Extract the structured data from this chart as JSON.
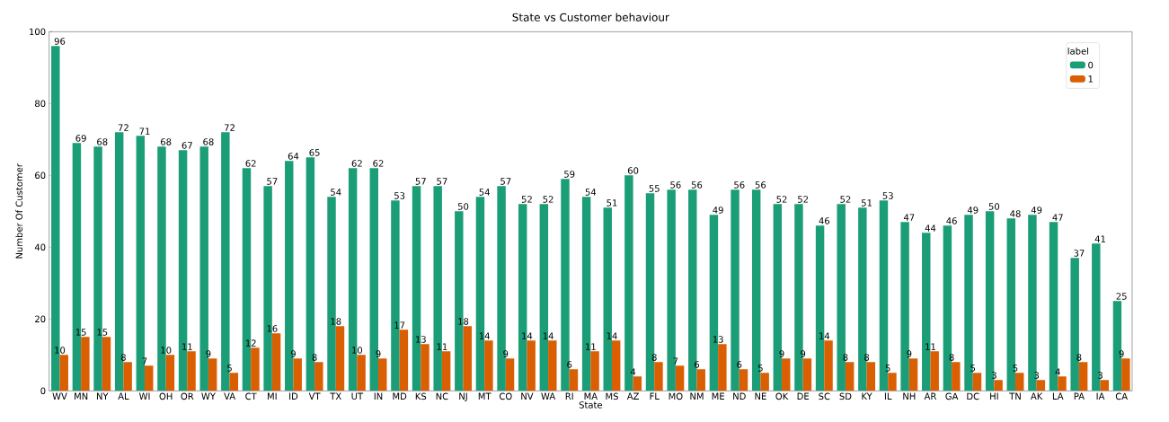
{
  "chart_data": {
    "type": "bar",
    "title": "State vs Customer behaviour",
    "xlabel": "State",
    "ylabel": "Number Of Customer",
    "legend_title": "label",
    "categories": [
      "WV",
      "MN",
      "NY",
      "AL",
      "WI",
      "OH",
      "OR",
      "WY",
      "VA",
      "CT",
      "MI",
      "ID",
      "VT",
      "TX",
      "UT",
      "IN",
      "MD",
      "KS",
      "NC",
      "NJ",
      "MT",
      "CO",
      "NV",
      "WA",
      "RI",
      "MA",
      "MS",
      "AZ",
      "FL",
      "MO",
      "NM",
      "ME",
      "ND",
      "NE",
      "OK",
      "DE",
      "SC",
      "SD",
      "KY",
      "IL",
      "NH",
      "AR",
      "GA",
      "DC",
      "HI",
      "TN",
      "AK",
      "LA",
      "PA",
      "IA",
      "CA"
    ],
    "series": [
      {
        "name": "0",
        "color": "#1b9e77",
        "values": [
          96,
          69,
          68,
          72,
          71,
          68,
          67,
          68,
          72,
          62,
          57,
          64,
          65,
          54,
          62,
          62,
          53,
          57,
          57,
          50,
          54,
          57,
          52,
          52,
          59,
          54,
          51,
          60,
          55,
          56,
          56,
          49,
          56,
          56,
          52,
          52,
          46,
          52,
          51,
          53,
          47,
          44,
          46,
          49,
          50,
          48,
          49,
          47,
          37,
          41,
          25
        ]
      },
      {
        "name": "1",
        "color": "#d95f02",
        "values": [
          10,
          15,
          15,
          8,
          7,
          10,
          11,
          9,
          5,
          12,
          16,
          9,
          8,
          18,
          10,
          9,
          17,
          13,
          11,
          18,
          14,
          9,
          14,
          14,
          6,
          11,
          14,
          4,
          8,
          7,
          6,
          13,
          6,
          5,
          9,
          9,
          14,
          8,
          8,
          5,
          9,
          11,
          8,
          5,
          3,
          5,
          3,
          4,
          8,
          3,
          9
        ]
      }
    ],
    "ylim": [
      0,
      100
    ],
    "yticks": [
      0,
      20,
      40,
      60,
      80,
      100
    ],
    "grid": false,
    "legend": "top right",
    "data_labels": true
  }
}
